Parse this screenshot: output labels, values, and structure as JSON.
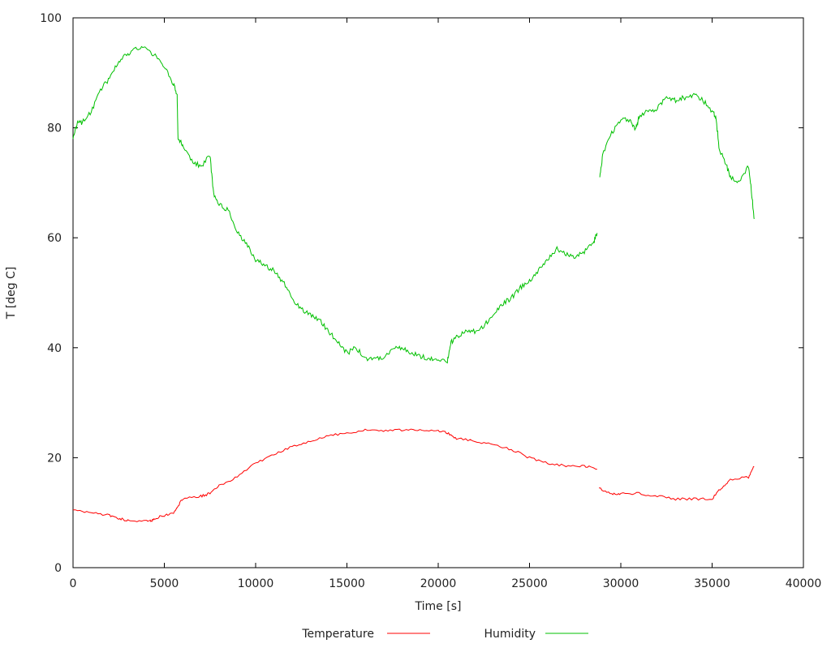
{
  "chart_data": {
    "type": "line",
    "title": "",
    "xlabel": "Time [s]",
    "ylabel": "T [deg C]",
    "xlim": [
      0,
      40000
    ],
    "ylim": [
      0,
      100
    ],
    "xticks": [
      0,
      5000,
      10000,
      15000,
      20000,
      25000,
      30000,
      35000,
      40000
    ],
    "yticks": [
      0,
      20,
      40,
      60,
      80,
      100
    ],
    "grid": false,
    "legend": "bottom",
    "series": [
      {
        "name": "Temperature",
        "color": "#ff0000",
        "x": [
          0,
          1000,
          2000,
          2500,
          3000,
          4000,
          4300,
          4500,
          5000,
          5500,
          5700,
          6000,
          7000,
          7500,
          8000,
          9000,
          10000,
          11000,
          12000,
          13000,
          14000,
          15000,
          16000,
          17000,
          18000,
          19000,
          20000,
          20500,
          21000,
          22000,
          23000,
          24000,
          25000,
          26000,
          27000,
          28000,
          28700,
          28750,
          28800,
          29500,
          30000,
          31000,
          32000,
          33000,
          34000,
          35000,
          35500,
          36000,
          37000,
          37300
        ],
        "y": [
          10.5,
          10,
          9.5,
          9,
          8.5,
          8.5,
          8.5,
          9,
          9.5,
          10,
          11,
          12.5,
          13,
          13.5,
          15,
          16.5,
          19,
          20.5,
          22,
          23,
          24,
          24.5,
          25,
          25,
          25,
          25,
          25,
          24.5,
          23.5,
          23,
          22.5,
          21.5,
          20,
          19,
          18.5,
          18.5,
          18,
          null,
          14.5,
          13.5,
          13.5,
          13.5,
          13,
          12.5,
          12.5,
          12.5,
          14.5,
          16,
          16.5,
          18.5
        ]
      },
      {
        "name": "Humidity",
        "color": "#00c000",
        "x": [
          0,
          250,
          500,
          1000,
          1500,
          2000,
          2500,
          3000,
          3500,
          4000,
          4500,
          5000,
          5500,
          5700,
          5750,
          6000,
          6500,
          7000,
          7500,
          7700,
          8000,
          8500,
          9000,
          9500,
          10000,
          10500,
          11000,
          11500,
          12000,
          12500,
          13000,
          13500,
          14000,
          14500,
          15000,
          15500,
          16000,
          16500,
          17000,
          17500,
          18000,
          18500,
          19000,
          19500,
          20000,
          20500,
          20700,
          21000,
          21500,
          22000,
          22500,
          23000,
          23500,
          24000,
          24500,
          25000,
          25500,
          26000,
          26500,
          27000,
          27500,
          28000,
          28500,
          28700,
          28780,
          28850,
          29000,
          29500,
          30000,
          30500,
          30800,
          31000,
          31500,
          32000,
          32500,
          33000,
          33500,
          34000,
          34500,
          35000,
          35200,
          35400,
          35700,
          36000,
          36500,
          37000,
          37200,
          37300
        ],
        "y": [
          78,
          81,
          81,
          83,
          87,
          89,
          92,
          93.5,
          94.5,
          94.5,
          93,
          91,
          88,
          86,
          78,
          77,
          74,
          73,
          75,
          68,
          66,
          65,
          61,
          59,
          56,
          55,
          54,
          52,
          49,
          47,
          46,
          45,
          43,
          41,
          39,
          40,
          38,
          38,
          38,
          40,
          40,
          39,
          38.5,
          38,
          38,
          37.5,
          41,
          42,
          43,
          43,
          44,
          46,
          48,
          49,
          51,
          52,
          54,
          56,
          58,
          57,
          56.5,
          57.5,
          59,
          61,
          null,
          71,
          75,
          79,
          81.5,
          81.5,
          79.5,
          82,
          83,
          83.5,
          85.5,
          85,
          85.5,
          86,
          85,
          83,
          82,
          76,
          74,
          71,
          70,
          73,
          67,
          63
        ]
      }
    ]
  }
}
